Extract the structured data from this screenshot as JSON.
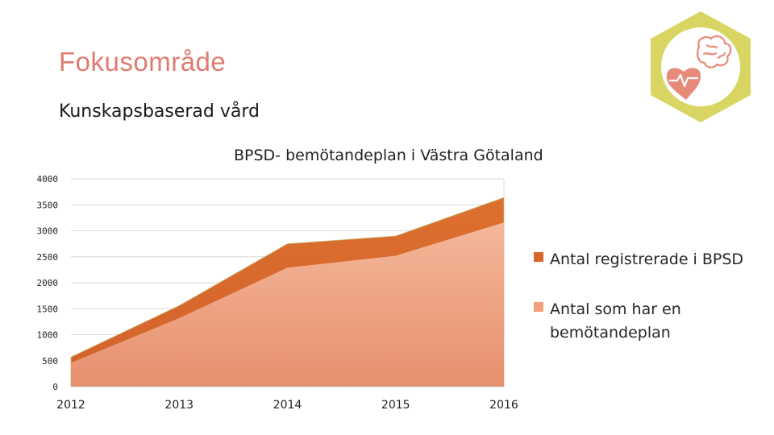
{
  "header": {
    "title": "Fokusområde",
    "subtitle": "Kunskapsbaserad vård"
  },
  "badge": {
    "icon": "heart-brain-icon",
    "hex_color": "#d8d562",
    "circle_color": "#ffffff",
    "icon_color": "#e88a7a"
  },
  "chart_data": {
    "type": "area",
    "title": "BPSD- bemötandeplan i Västra Götaland",
    "x": [
      "2012",
      "2013",
      "2014",
      "2015",
      "2016"
    ],
    "ylim": [
      0,
      4000
    ],
    "yticks": [
      "0",
      "500",
      "1000",
      "1500",
      "2000",
      "2500",
      "3000",
      "3500",
      "4000"
    ],
    "grid": true,
    "legend_position": "right",
    "series": [
      {
        "name": "Antal registrerade i BPSD",
        "values": [
          570,
          1560,
          2750,
          2900,
          3640
        ],
        "color": "#d9662a"
      },
      {
        "name": "Antal som har en bemötandeplan",
        "values": [
          460,
          1320,
          2290,
          2520,
          3160
        ],
        "color": "#f1a07c"
      }
    ]
  }
}
